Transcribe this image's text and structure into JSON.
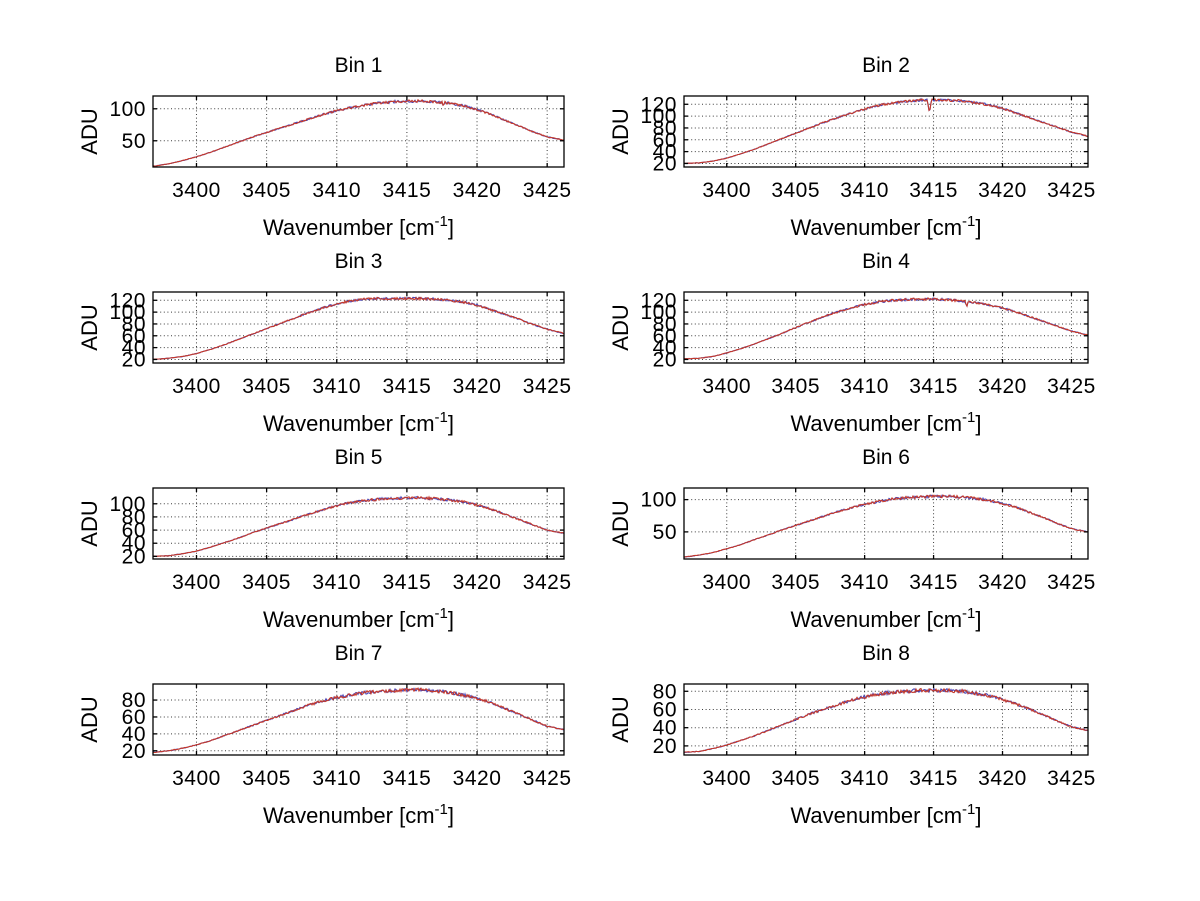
{
  "figure": {
    "background": "#ffffff",
    "axis_color": "#000000",
    "grid_color": "#3c3c3c",
    "line_color": "#c5392b",
    "secondary_line_color": "#4743b6",
    "text_color": "#000000"
  },
  "labels": {
    "ylabel": "ADU",
    "xlabel_main": "Wavenumber [cm",
    "xlabel_sup": "-1",
    "xlabel_close": "]"
  },
  "x_ticks": [
    3400,
    3405,
    3410,
    3415,
    3420,
    3425
  ],
  "xlim": [
    3396.9,
    3426.2
  ],
  "chart_data": [
    {
      "type": "line",
      "title": "Bin 1",
      "xlabel": "Wavenumber [cm-1]",
      "ylabel": "ADU",
      "ylim": [
        9,
        120
      ],
      "y_ticks": [
        50,
        100
      ],
      "grid": true,
      "x": [
        3396.9,
        3398,
        3399,
        3400,
        3401,
        3402,
        3403,
        3404,
        3405,
        3406,
        3407,
        3408,
        3409,
        3410,
        3411,
        3412,
        3413,
        3414,
        3415,
        3416,
        3417,
        3418,
        3419,
        3420,
        3421,
        3422,
        3423,
        3424,
        3425,
        3426.2
      ],
      "y": [
        10,
        14,
        19,
        25,
        32,
        40,
        48,
        56,
        63,
        70,
        77,
        84,
        91,
        97,
        102,
        106,
        109,
        111,
        112,
        112,
        111,
        109,
        105,
        99,
        91,
        82,
        73,
        64,
        56,
        51
      ],
      "spikes": [
        {
          "x": 3417.6,
          "y": 104,
          "w": 0.1
        }
      ]
    },
    {
      "type": "line",
      "title": "Bin 2",
      "xlabel": "Wavenumber [cm-1]",
      "ylabel": "ADU",
      "ylim": [
        14,
        134
      ],
      "y_ticks": [
        20,
        40,
        60,
        80,
        100,
        120
      ],
      "grid": true,
      "x": [
        3396.9,
        3398,
        3399,
        3400,
        3401,
        3402,
        3403,
        3404,
        3405,
        3406,
        3407,
        3408,
        3409,
        3410,
        3411,
        3412,
        3413,
        3414,
        3415,
        3416,
        3417,
        3418,
        3419,
        3420,
        3421,
        3422,
        3423,
        3424,
        3425,
        3426.2
      ],
      "y": [
        20,
        21,
        24,
        29,
        36,
        44,
        53,
        62,
        71,
        80,
        89,
        97,
        105,
        112,
        118,
        122,
        125,
        127,
        127,
        127,
        126,
        123,
        119,
        113,
        105,
        97,
        89,
        81,
        73,
        66
      ],
      "spikes": [
        {
          "x": 3414.7,
          "y": 105,
          "w": 0.15
        }
      ]
    },
    {
      "type": "line",
      "title": "Bin 3",
      "xlabel": "Wavenumber [cm-1]",
      "ylabel": "ADU",
      "ylim": [
        14,
        134
      ],
      "y_ticks": [
        20,
        40,
        60,
        80,
        100,
        120
      ],
      "grid": true,
      "x": [
        3396.9,
        3398,
        3399,
        3400,
        3401,
        3402,
        3403,
        3404,
        3405,
        3406,
        3407,
        3408,
        3409,
        3410,
        3411,
        3412,
        3413,
        3414,
        3415,
        3416,
        3417,
        3418,
        3419,
        3420,
        3421,
        3422,
        3423,
        3424,
        3425,
        3426.2
      ],
      "y": [
        20,
        22,
        25,
        30,
        37,
        45,
        54,
        63,
        72,
        81,
        90,
        99,
        107,
        114,
        119,
        122,
        123,
        123,
        123,
        123,
        122,
        120,
        117,
        112,
        104,
        96,
        88,
        79,
        71,
        64
      ],
      "spikes": []
    },
    {
      "type": "line",
      "title": "Bin 4",
      "xlabel": "Wavenumber [cm-1]",
      "ylabel": "ADU",
      "ylim": [
        14,
        134
      ],
      "y_ticks": [
        20,
        40,
        60,
        80,
        100,
        120
      ],
      "grid": true,
      "x": [
        3396.9,
        3398,
        3399,
        3400,
        3401,
        3402,
        3403,
        3404,
        3405,
        3406,
        3407,
        3408,
        3409,
        3410,
        3411,
        3412,
        3413,
        3414,
        3415,
        3416,
        3417,
        3418,
        3419,
        3420,
        3421,
        3422,
        3423,
        3424,
        3425,
        3426.2
      ],
      "y": [
        21,
        22,
        25,
        31,
        38,
        46,
        55,
        64,
        74,
        83,
        92,
        100,
        107,
        113,
        117,
        120,
        121,
        122,
        122,
        121,
        119,
        116,
        112,
        107,
        100,
        92,
        84,
        76,
        68,
        61
      ],
      "spikes": [
        {
          "x": 3417.4,
          "y": 108,
          "w": 0.1
        }
      ]
    },
    {
      "type": "line",
      "title": "Bin 5",
      "xlabel": "Wavenumber [cm-1]",
      "ylabel": "ADU",
      "ylim": [
        16,
        124
      ],
      "y_ticks": [
        20,
        40,
        60,
        80,
        100
      ],
      "grid": true,
      "x": [
        3396.9,
        3398,
        3399,
        3400,
        3401,
        3402,
        3403,
        3404,
        3405,
        3406,
        3407,
        3408,
        3409,
        3410,
        3411,
        3412,
        3413,
        3414,
        3415,
        3416,
        3417,
        3418,
        3419,
        3420,
        3421,
        3422,
        3423,
        3424,
        3425,
        3426.2
      ],
      "y": [
        20,
        21,
        24,
        28,
        34,
        41,
        48,
        56,
        63,
        70,
        77,
        84,
        91,
        97,
        102,
        105,
        107,
        108,
        109,
        109,
        108,
        106,
        103,
        98,
        92,
        84,
        76,
        68,
        60,
        55
      ],
      "spikes": []
    },
    {
      "type": "line",
      "title": "Bin 6",
      "xlabel": "Wavenumber [cm-1]",
      "ylabel": "ADU",
      "ylim": [
        8,
        118
      ],
      "y_ticks": [
        50,
        100
      ],
      "grid": true,
      "x": [
        3396.9,
        3398,
        3399,
        3400,
        3401,
        3402,
        3403,
        3404,
        3405,
        3406,
        3407,
        3408,
        3409,
        3410,
        3411,
        3412,
        3413,
        3414,
        3415,
        3416,
        3417,
        3418,
        3419,
        3420,
        3421,
        3422,
        3423,
        3424,
        3425,
        3426.2
      ],
      "y": [
        11,
        14,
        18,
        24,
        30,
        38,
        45,
        53,
        60,
        67,
        74,
        81,
        87,
        93,
        97,
        101,
        103,
        104,
        105,
        105,
        104,
        102,
        99,
        94,
        88,
        80,
        72,
        63,
        55,
        50
      ],
      "spikes": []
    },
    {
      "type": "line",
      "title": "Bin 7",
      "xlabel": "Wavenumber [cm-1]",
      "ylabel": "ADU",
      "ylim": [
        15,
        99
      ],
      "y_ticks": [
        20,
        40,
        60,
        80
      ],
      "grid": true,
      "x": [
        3396.9,
        3398,
        3399,
        3400,
        3401,
        3402,
        3403,
        3404,
        3405,
        3406,
        3407,
        3408,
        3409,
        3410,
        3411,
        3412,
        3413,
        3414,
        3415,
        3416,
        3417,
        3418,
        3419,
        3420,
        3421,
        3422,
        3423,
        3424,
        3425,
        3426.2
      ],
      "y": [
        18,
        20,
        23,
        27,
        32,
        38,
        44,
        50,
        56,
        62,
        68,
        74,
        79,
        83,
        86,
        89,
        90,
        91,
        92,
        92,
        91,
        89,
        86,
        82,
        77,
        70,
        63,
        56,
        49,
        45
      ],
      "spikes": []
    },
    {
      "type": "line",
      "title": "Bin 8",
      "xlabel": "Wavenumber [cm-1]",
      "ylabel": "ADU",
      "ylim": [
        10,
        88
      ],
      "y_ticks": [
        20,
        40,
        60,
        80
      ],
      "grid": true,
      "x": [
        3396.9,
        3398,
        3399,
        3400,
        3401,
        3402,
        3403,
        3404,
        3405,
        3406,
        3407,
        3408,
        3409,
        3410,
        3411,
        3412,
        3413,
        3414,
        3415,
        3416,
        3417,
        3418,
        3419,
        3420,
        3421,
        3422,
        3423,
        3424,
        3425,
        3426.2
      ],
      "y": [
        13,
        14,
        17,
        21,
        26,
        31,
        37,
        43,
        49,
        55,
        60,
        65,
        70,
        74,
        77,
        79,
        80,
        81,
        81,
        81,
        80,
        78,
        75,
        71,
        66,
        60,
        54,
        47,
        41,
        37
      ],
      "spikes": []
    }
  ]
}
